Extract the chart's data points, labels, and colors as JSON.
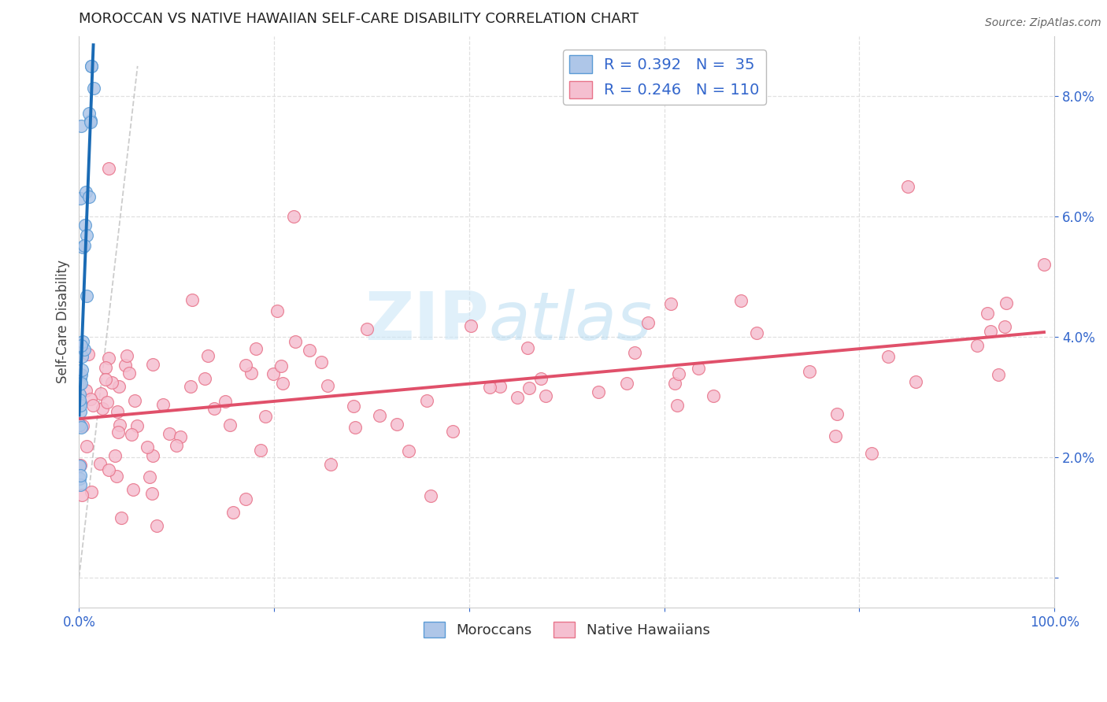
{
  "title": "MOROCCAN VS NATIVE HAWAIIAN SELF-CARE DISABILITY CORRELATION CHART",
  "source": "Source: ZipAtlas.com",
  "ylabel": "Self-Care Disability",
  "xlim": [
    0,
    1.0
  ],
  "ylim": [
    -0.005,
    0.09
  ],
  "xtick_vals": [
    0.0,
    0.2,
    0.4,
    0.6,
    0.8,
    1.0
  ],
  "xtick_labels": [
    "0.0%",
    "",
    "",
    "",
    "",
    "100.0%"
  ],
  "ytick_vals": [
    0.0,
    0.02,
    0.04,
    0.06,
    0.08
  ],
  "ytick_labels": [
    "",
    "2.0%",
    "4.0%",
    "6.0%",
    "8.0%"
  ],
  "moroccan_color": "#aec6e8",
  "moroccan_edge_color": "#5b9bd5",
  "hawaiian_color": "#f5bfd0",
  "hawaiian_edge_color": "#e8748a",
  "moroccan_R": 0.392,
  "moroccan_N": 35,
  "hawaiian_R": 0.246,
  "hawaiian_N": 110,
  "legend_label_moroccan": "Moroccans",
  "legend_label_hawaiian": "Native Hawaiians",
  "watermark_zip": "ZIP",
  "watermark_atlas": "atlas",
  "background_color": "#ffffff",
  "moroccan_line_color": "#1a6bb5",
  "hawaiian_line_color": "#e0506a",
  "ref_line_color": "#c0c0c0",
  "grid_color": "#dddddd",
  "tick_color": "#3366cc",
  "title_color": "#222222",
  "ylabel_color": "#444444",
  "source_color": "#666666",
  "legend_text_color": "#3366cc"
}
